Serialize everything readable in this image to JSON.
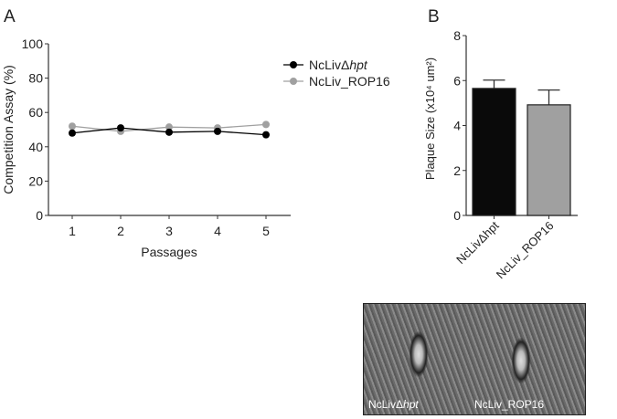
{
  "chart_data": [
    {
      "panel": "A",
      "type": "line",
      "xlabel": "Passages",
      "ylabel": "Competition Assay (%)",
      "x": [
        1,
        2,
        3,
        4,
        5
      ],
      "xlim": [
        0.5,
        5.5
      ],
      "ylim": [
        0,
        100
      ],
      "yticks": [
        0,
        20,
        40,
        60,
        80,
        100
      ],
      "legend": "top-right",
      "series": [
        {
          "name": "NcLivΔhpt",
          "name_plain": "NcLivΔ",
          "name_italic": "hpt",
          "color": "#000000",
          "values": [
            48,
            51,
            48.5,
            49,
            47
          ]
        },
        {
          "name": "NcLiv_ROP16",
          "color": "#a0a0a0",
          "values": [
            52,
            49,
            51.5,
            51,
            53
          ]
        }
      ]
    },
    {
      "panel": "B",
      "type": "bar",
      "ylabel": "Plaque Size (x10⁴ um²)",
      "categories": [
        "NcLivΔhpt",
        "NcLiv_ROP16"
      ],
      "values": [
        5.65,
        4.92
      ],
      "error": [
        0.37,
        0.66
      ],
      "colors": [
        "#0a0a0a",
        "#a0a0a0"
      ],
      "ylim": [
        0,
        8
      ],
      "yticks": [
        0,
        2,
        4,
        6,
        8
      ]
    }
  ],
  "image": {
    "label_left_plain": "NcLivΔ",
    "label_left_italic": "hpt",
    "label_right": "NcLiv_ROP16"
  }
}
